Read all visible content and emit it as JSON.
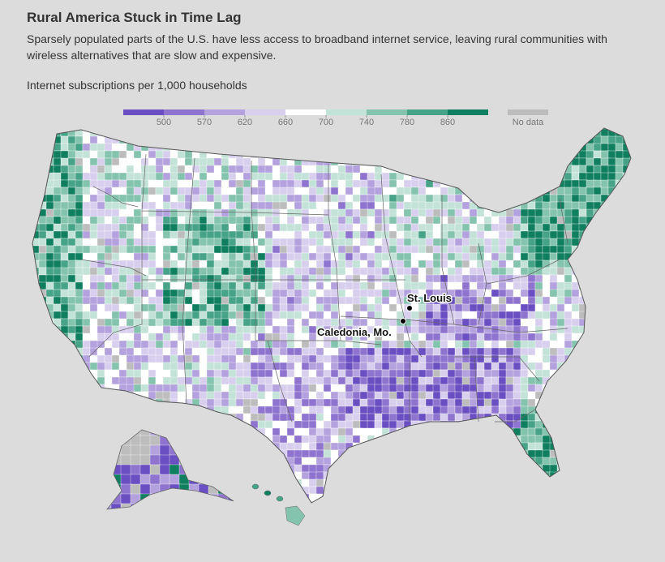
{
  "header": {
    "title": "Rural America Stuck in Time Lag",
    "subtitle": "Sparsely populated parts of the U.S. have less access to broadband internet service, leaving rural communities with wireless alternatives that are slow and expensive."
  },
  "legend": {
    "title": "Internet subscriptions per 1,000 households",
    "bins": [
      {
        "color": "#6a4fc2"
      },
      {
        "color": "#8f74cf"
      },
      {
        "color": "#b3a2dd"
      },
      {
        "color": "#d8cfee"
      },
      {
        "color": "#ffffff"
      },
      {
        "color": "#c3e2d8"
      },
      {
        "color": "#84c3ad"
      },
      {
        "color": "#47a387"
      },
      {
        "color": "#0f7f5f"
      }
    ],
    "ticks": [
      "500",
      "570",
      "620",
      "660",
      "700",
      "740",
      "780",
      "860"
    ],
    "no_data": {
      "label": "No data",
      "color": "#bdbdbd"
    }
  },
  "map": {
    "cities": [
      {
        "name": "St. Louis"
      },
      {
        "name": "Caledonia, Mo."
      }
    ]
  }
}
